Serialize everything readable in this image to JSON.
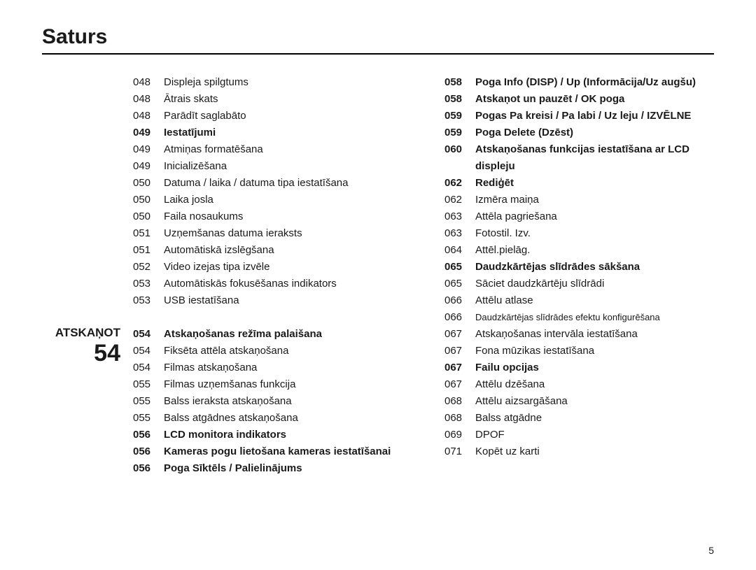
{
  "page": {
    "title": "Saturs",
    "number": "5"
  },
  "section": {
    "label": "ATSKAŅOT",
    "number": "54"
  },
  "colLeft": [
    {
      "num": "048",
      "text": "Displeja spilgtums",
      "bold": false
    },
    {
      "num": "048",
      "text": "Ātrais skats",
      "bold": false
    },
    {
      "num": "048",
      "text": "Parādīt saglabāto",
      "bold": false
    },
    {
      "num": "049",
      "text": "Iestatījumi",
      "bold": true
    },
    {
      "num": "049",
      "text": "Atmiņas formatēšana",
      "bold": false
    },
    {
      "num": "049",
      "text": "Inicializēšana",
      "bold": false
    },
    {
      "num": "050",
      "text": "Datuma / laika / datuma tipa iestatīšana",
      "bold": false
    },
    {
      "num": "050",
      "text": "Laika josla",
      "bold": false
    },
    {
      "num": "050",
      "text": "Faila nosaukums",
      "bold": false
    },
    {
      "num": "051",
      "text": "Uzņemšanas datuma ieraksts",
      "bold": false
    },
    {
      "num": "051",
      "text": "Automātiskā izslēgšana",
      "bold": false
    },
    {
      "num": "052",
      "text": "Video izejas tipa izvēle",
      "bold": false
    },
    {
      "num": "053",
      "text": "Automātiskās fokusēšanas indikators",
      "bold": false
    },
    {
      "num": "053",
      "text": "USB iestatīšana",
      "bold": false
    }
  ],
  "colLeftSection": [
    {
      "num": "054",
      "text": "Atskaņošanas režīma palaišana",
      "bold": true
    },
    {
      "num": "054",
      "text": "Fiksēta attēla atskaņošana",
      "bold": false
    },
    {
      "num": "054",
      "text": "Filmas atskaņošana",
      "bold": false
    },
    {
      "num": "055",
      "text": "Filmas uzņemšanas funkcija",
      "bold": false
    },
    {
      "num": "055",
      "text": "Balss ieraksta atskaņošana",
      "bold": false
    },
    {
      "num": "055",
      "text": "Balss atgādnes atskaņošana",
      "bold": false
    },
    {
      "num": "056",
      "text": "LCD monitora indikators",
      "bold": true
    },
    {
      "num": "056",
      "text": "Kameras pogu lietošana kameras iestatīšanai",
      "bold": true
    },
    {
      "num": "056",
      "text": "Poga Sīktēls / Palielinājums",
      "bold": true
    }
  ],
  "colRight": [
    {
      "num": "058",
      "text": "Poga Info (DISP) / Up (Informācija/Uz augšu)",
      "bold": true
    },
    {
      "num": "058",
      "text": "Atskaņot un pauzēt / OK poga",
      "bold": true
    },
    {
      "num": "059",
      "text": "Pogas Pa kreisi / Pa labi / Uz leju / IZVĒLNE",
      "bold": true
    },
    {
      "num": "059",
      "text": "Poga Delete (Dzēst)",
      "bold": true
    },
    {
      "num": "060",
      "text": "Atskaņošanas funkcijas iestatīšana ar LCD displeju",
      "bold": true
    },
    {
      "num": "062",
      "text": "Rediģēt",
      "bold": true
    },
    {
      "num": "062",
      "text": "Izmēra maiņa",
      "bold": false
    },
    {
      "num": "063",
      "text": "Attēla pagriešana",
      "bold": false
    },
    {
      "num": "063",
      "text": "Fotostil. Izv.",
      "bold": false
    },
    {
      "num": "064",
      "text": "Attēl.pielāg.",
      "bold": false
    },
    {
      "num": "065",
      "text": "Daudzkārtējas slīdrādes sākšana",
      "bold": true
    },
    {
      "num": "065",
      "text": "Sāciet daudzkārtēju slīdrādi",
      "bold": false
    },
    {
      "num": "066",
      "text": "Attēlu atlase",
      "bold": false
    },
    {
      "num": "066",
      "text": "Daudzkārtējas slīdrādes efektu konfigurēšana",
      "bold": false,
      "small": true
    },
    {
      "num": "067",
      "text": "Atskaņošanas intervāla iestatīšana",
      "bold": false
    },
    {
      "num": "067",
      "text": "Fona mūzikas iestatīšana",
      "bold": false
    },
    {
      "num": "067",
      "text": "Failu opcijas",
      "bold": true
    },
    {
      "num": "067",
      "text": "Attēlu dzēšana",
      "bold": false
    },
    {
      "num": "068",
      "text": "Attēlu aizsargāšana",
      "bold": false
    },
    {
      "num": "068",
      "text": "Balss atgādne",
      "bold": false
    },
    {
      "num": "069",
      "text": "DPOF",
      "bold": false
    },
    {
      "num": "071",
      "text": "Kopēt uz karti",
      "bold": false
    }
  ]
}
